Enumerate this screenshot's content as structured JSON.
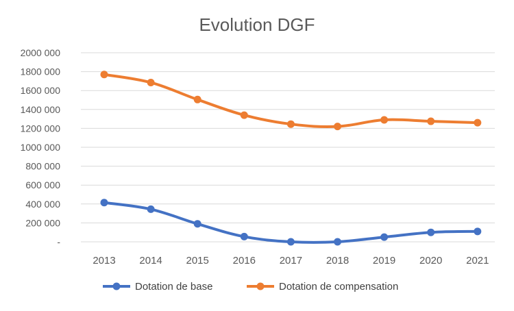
{
  "chart_data": {
    "type": "line",
    "title": "Evolution DGF",
    "xlabel": "",
    "ylabel": "",
    "categories": [
      "2013",
      "2014",
      "2015",
      "2016",
      "2017",
      "2018",
      "2019",
      "2020",
      "2021"
    ],
    "ylim": [
      0,
      2000000
    ],
    "y_ticks": [
      0,
      200000,
      400000,
      600000,
      800000,
      1000000,
      1200000,
      1400000,
      1600000,
      1800000,
      2000000
    ],
    "y_tick_labels": [
      "-",
      "200 000",
      "400 000",
      "600 000",
      "800 000",
      "1000 000",
      "1200 000",
      "1400 000",
      "1600 000",
      "1800 000",
      "2000 000"
    ],
    "grid": true,
    "legend_position": "bottom",
    "series": [
      {
        "name": "Dotation de base",
        "color": "#4472C4",
        "values": [
          415000,
          345000,
          190000,
          55000,
          0,
          0,
          50000,
          100000,
          110000
        ]
      },
      {
        "name": "Dotation de compensation",
        "color": "#ED7D31",
        "values": [
          1770000,
          1685000,
          1505000,
          1340000,
          1245000,
          1220000,
          1290000,
          1275000,
          1260000
        ]
      }
    ]
  }
}
